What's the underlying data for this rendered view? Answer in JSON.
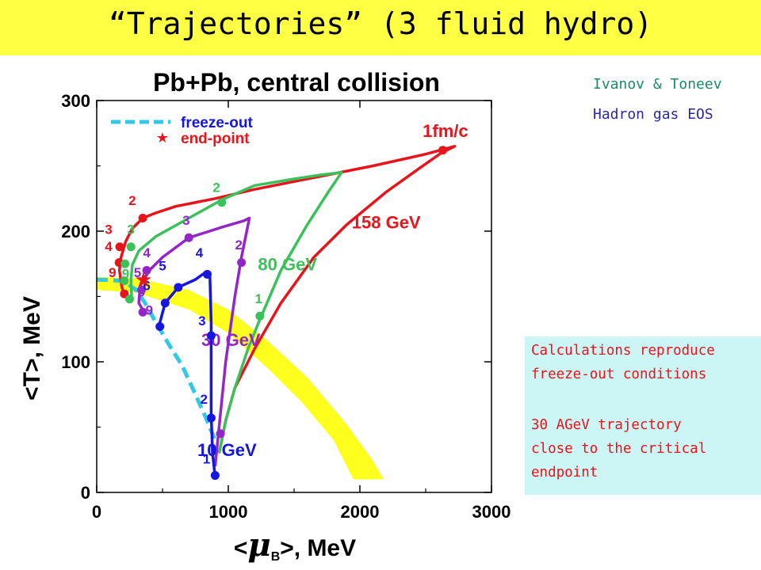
{
  "slide": {
    "title": "“Trajectories” (3 fluid hydro)",
    "author": "Ivanov & Toneev",
    "eos": "Hadron gas EOS",
    "note": {
      "line1": "Calculations reproduce",
      "line2": "freeze-out conditions",
      "line3": "30 AGeV trajectory",
      "line4": "close to the critical",
      "line5": "endpoint"
    }
  },
  "colors": {
    "red": "#e8141b",
    "green": "#3cc15a",
    "purple": "#9326c9",
    "blue": "#1616e0",
    "cyan": "#33c7e8",
    "yellow": "#ffff1e",
    "title_bg": "#ffff44",
    "note_bg": "#ccf6f6"
  },
  "chart_data": {
    "type": "line",
    "title": "Pb+Pb, central collision",
    "xlabel_prefix": "<",
    "xlabel_mu": "μ",
    "xlabel_sub": "B",
    "xlabel_suffix": ">, MeV",
    "ylabel": "<T>, MeV",
    "xlim": [
      0,
      3000
    ],
    "ylim": [
      0,
      300
    ],
    "x_ticks": [
      0,
      1000,
      2000,
      3000
    ],
    "x_tick_labels": [
      "0",
      "1000",
      "2000",
      "3000"
    ],
    "y_ticks": [
      0,
      100,
      200,
      300
    ],
    "y_tick_labels": [
      "0",
      "100",
      "200",
      "300"
    ],
    "legend": {
      "position": "top-left",
      "freeze_out": "freeze-out",
      "end_point": "end-point",
      "star_glyph": "★"
    },
    "freeze_out_curve": [
      [
        0,
        163
      ],
      [
        200,
        162
      ],
      [
        300,
        155
      ],
      [
        380,
        143
      ],
      [
        450,
        130
      ],
      [
        550,
        113
      ],
      [
        650,
        97
      ],
      [
        750,
        75
      ],
      [
        830,
        57
      ],
      [
        900,
        40
      ]
    ],
    "yellow_band": {
      "inner": [
        [
          0,
          155
        ],
        [
          300,
          153
        ],
        [
          700,
          140
        ],
        [
          1000,
          122
        ],
        [
          1300,
          95
        ],
        [
          1550,
          70
        ],
        [
          1800,
          40
        ],
        [
          1950,
          10
        ]
      ],
      "outer": [
        [
          0,
          165
        ],
        [
          300,
          164
        ],
        [
          700,
          155
        ],
        [
          1000,
          140
        ],
        [
          1300,
          116
        ],
        [
          1600,
          88
        ],
        [
          1900,
          52
        ],
        [
          2100,
          24
        ],
        [
          2180,
          10
        ]
      ]
    },
    "end_point": {
      "x": 355,
      "y": 163
    },
    "series": [
      {
        "name": "158 GeV",
        "color": "#e8141b",
        "curve": [
          [
            930,
            30
          ],
          [
            980,
            55
          ],
          [
            1050,
            80
          ],
          [
            1200,
            110
          ],
          [
            1400,
            145
          ],
          [
            1650,
            180
          ],
          [
            1900,
            205
          ],
          [
            2200,
            230
          ],
          [
            2450,
            248
          ],
          [
            2620,
            260
          ],
          [
            2720,
            265
          ],
          [
            2500,
            259
          ],
          [
            2100,
            250
          ],
          [
            1600,
            240
          ],
          [
            1200,
            232
          ],
          [
            900,
            225
          ],
          [
            600,
            219
          ],
          [
            450,
            214
          ],
          [
            350,
            210
          ],
          [
            270,
            202
          ],
          [
            220,
            192
          ],
          [
            185,
            180
          ],
          [
            172,
            170
          ],
          [
            190,
            158
          ],
          [
            210,
            150
          ]
        ],
        "points": [
          [
            2630,
            262
          ],
          [
            350,
            210
          ],
          [
            175,
            188
          ],
          [
            170,
            176
          ],
          [
            210,
            152
          ]
        ],
        "labels": [
          {
            "text": "1fm/c",
            "x": 2650,
            "y": 272
          },
          {
            "text": "2",
            "x": 270,
            "y": 220
          },
          {
            "text": "3",
            "x": 90,
            "y": 198
          },
          {
            "text": "4",
            "x": 90,
            "y": 185
          },
          {
            "text": "9",
            "x": 120,
            "y": 165
          },
          {
            "text": "158 GeV",
            "x": 2200,
            "y": 202
          }
        ]
      },
      {
        "name": "80 GeV",
        "color": "#3cc15a",
        "curve": [
          [
            930,
            30
          ],
          [
            980,
            55
          ],
          [
            1050,
            80
          ],
          [
            1150,
            110
          ],
          [
            1230,
            130
          ],
          [
            1400,
            170
          ],
          [
            1600,
            205
          ],
          [
            1760,
            230
          ],
          [
            1860,
            245
          ],
          [
            1700,
            243
          ],
          [
            1500,
            240
          ],
          [
            1200,
            235
          ],
          [
            950,
            224
          ],
          [
            700,
            210
          ],
          [
            450,
            196
          ],
          [
            320,
            185
          ],
          [
            270,
            174
          ],
          [
            260,
            162
          ],
          [
            265,
            150
          ]
        ],
        "points": [
          [
            1240,
            135
          ],
          [
            950,
            222
          ],
          [
            260,
            188
          ],
          [
            215,
            175
          ],
          [
            210,
            162
          ],
          [
            250,
            148
          ]
        ],
        "labels": [
          {
            "text": "1",
            "x": 1230,
            "y": 145
          },
          {
            "text": "2",
            "x": 910,
            "y": 230
          },
          {
            "text": "3",
            "x": 260,
            "y": 198
          },
          {
            "text": "9",
            "x": 220,
            "y": 164
          },
          {
            "text": "80 GeV",
            "x": 1450,
            "y": 170
          }
        ]
      },
      {
        "name": "30 GeV",
        "color": "#9326c9",
        "curve": [
          [
            900,
            20
          ],
          [
            930,
            50
          ],
          [
            980,
            100
          ],
          [
            1050,
            150
          ],
          [
            1100,
            180
          ],
          [
            1160,
            210
          ],
          [
            1120,
            208
          ],
          [
            950,
            203
          ],
          [
            700,
            195
          ],
          [
            500,
            180
          ],
          [
            400,
            170
          ],
          [
            330,
            158
          ],
          [
            320,
            145
          ],
          [
            360,
            138
          ]
        ],
        "points": [
          [
            940,
            45
          ],
          [
            1100,
            176
          ],
          [
            700,
            195
          ],
          [
            380,
            170
          ],
          [
            340,
            155
          ],
          [
            350,
            138
          ]
        ],
        "labels": [
          {
            "text": "2",
            "x": 1080,
            "y": 186
          },
          {
            "text": "3",
            "x": 680,
            "y": 205
          },
          {
            "text": "4",
            "x": 380,
            "y": 180
          },
          {
            "text": "5",
            "x": 310,
            "y": 165
          },
          {
            "text": "9",
            "x": 340,
            "y": 150
          },
          {
            "text": "9",
            "x": 400,
            "y": 136
          },
          {
            "text": "30 GeV",
            "x": 1020,
            "y": 112
          }
        ]
      },
      {
        "name": "10 GeV",
        "color": "#1616e0",
        "curve": [
          [
            900,
            12
          ],
          [
            880,
            30
          ],
          [
            870,
            60
          ],
          [
            870,
            100
          ],
          [
            870,
            130
          ],
          [
            860,
            165
          ],
          [
            820,
            168
          ],
          [
            750,
            163
          ],
          [
            620,
            157
          ],
          [
            520,
            145
          ],
          [
            480,
            130
          ],
          [
            500,
            125
          ]
        ],
        "points": [
          [
            900,
            13
          ],
          [
            870,
            57
          ],
          [
            870,
            120
          ],
          [
            840,
            167
          ],
          [
            620,
            157
          ],
          [
            520,
            145
          ],
          [
            480,
            127
          ]
        ],
        "labels": [
          {
            "text": "1",
            "x": 835,
            "y": 22
          },
          {
            "text": "2",
            "x": 815,
            "y": 68
          },
          {
            "text": "3",
            "x": 800,
            "y": 128
          },
          {
            "text": "4",
            "x": 780,
            "y": 180
          },
          {
            "text": "5",
            "x": 500,
            "y": 170
          },
          {
            "text": "6",
            "x": 380,
            "y": 155
          },
          {
            "text": "10 GeV",
            "x": 990,
            "y": 28
          }
        ]
      }
    ]
  }
}
